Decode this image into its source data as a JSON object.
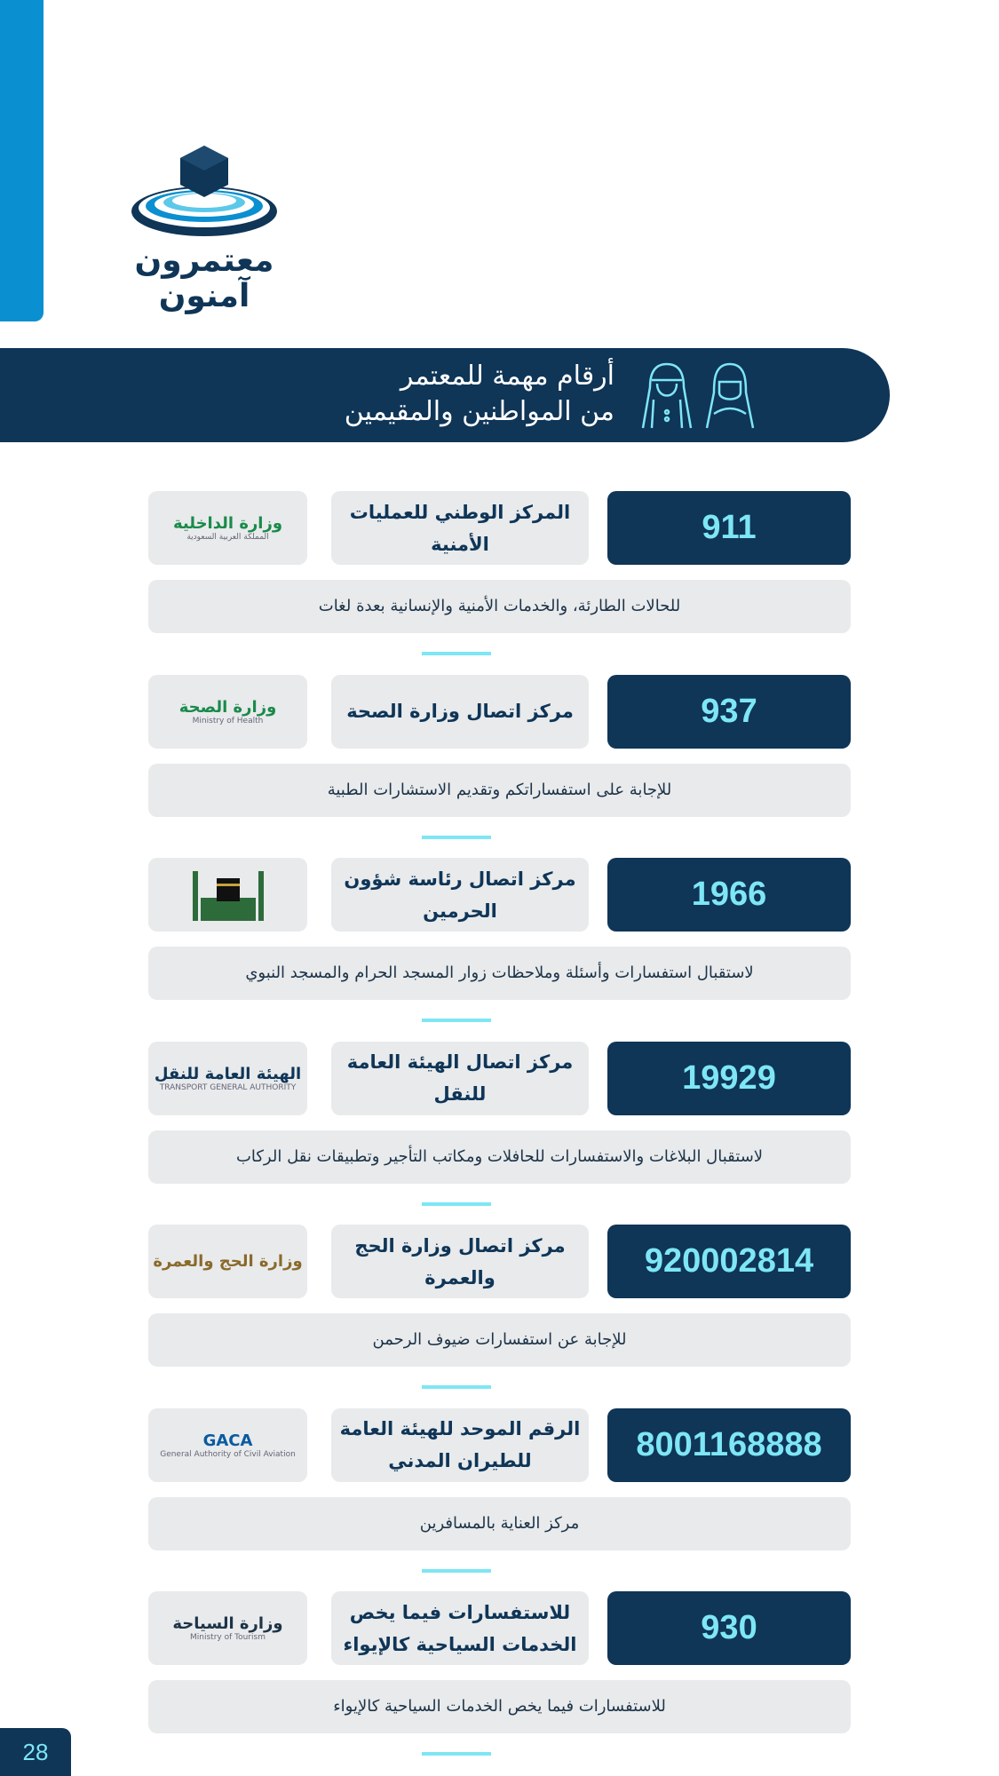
{
  "logo": {
    "line1": "معتمرون",
    "line2": "آمنون"
  },
  "banner": {
    "line1": "أرقام مهمة للمعتمر",
    "line2": "من المواطنين والمقيمين"
  },
  "colors": {
    "navy": "#0f3557",
    "cyan": "#7ee6f5",
    "blue": "#0a8fd0",
    "card": "#e8eaec"
  },
  "entries": [
    {
      "number": "911",
      "name": "المركز الوطني للعمليات الأمنية",
      "org_logo": "وزارة الداخلية",
      "org_sub": "المملكة العربية السعودية",
      "org_color": "#1a8a4a",
      "description": "للحالات الطارئة، والخدمات الأمنية والإنسانية بعدة لغات"
    },
    {
      "number": "937",
      "name": "مركز اتصال وزارة الصحة",
      "org_logo": "وزارة الصحة",
      "org_sub": "Ministry of Health",
      "org_color": "#1a8a4a",
      "description": "للإجابة على استفساراتكم وتقديم الاستشارات الطبية"
    },
    {
      "number": "1966",
      "name": "مركز اتصال رئاسة شؤون الحرمين",
      "org_logo": "",
      "org_sub": "",
      "org_color": "#2e6b3a",
      "description": "لاستقبال استفسارات وأسئلة وملاحظات زوار المسجد الحرام والمسجد النبوي"
    },
    {
      "number": "19929",
      "name": "مركز اتصال الهيئة العامة للنقل",
      "org_logo": "الهيئة العامة للنقل",
      "org_sub": "TRANSPORT GENERAL AUTHORITY",
      "org_color": "#0f3557",
      "description": "لاستقبال البلاغات والاستفسارات للحافلات ومكاتب التأجير وتطبيقات نقل الركاب"
    },
    {
      "number": "920002814",
      "name": "مركز اتصال وزارة الحج والعمرة",
      "org_logo": "وزارة الحج والعمرة",
      "org_sub": "",
      "org_color": "#8a6a2a",
      "description": "للإجابة عن استفسارات ضيوف الرحمن"
    },
    {
      "number": "8001168888",
      "name": "الرقم الموحد للهيئة العامة للطيران المدني",
      "org_logo": "GACA",
      "org_sub": "General Authority of Civil Aviation",
      "org_color": "#0a5aa0",
      "description": "مركز العناية بالمسافرين"
    },
    {
      "number": "930",
      "name": "للاستفسارات فيما يخص الخدمات السياحية كالإيواء",
      "org_logo": "وزارة السياحة",
      "org_sub": "Ministry of Tourism",
      "org_color": "#1d3347",
      "description": "للاستفسارات فيما يخص الخدمات السياحية كالإيواء"
    }
  ],
  "page_number": "28"
}
